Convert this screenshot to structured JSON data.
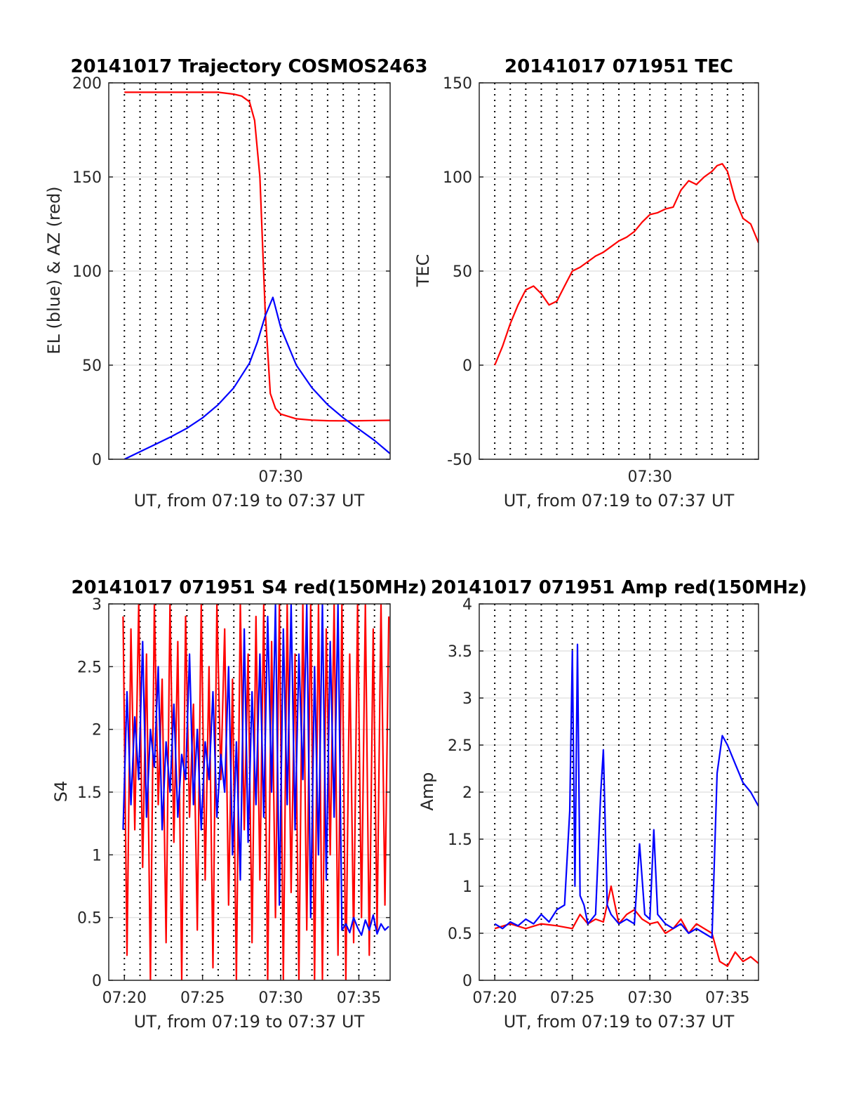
{
  "figure": {
    "background": "#ffffff",
    "colors": {
      "red": "#ff0000",
      "blue": "#0000ff",
      "axis": "#262626"
    }
  },
  "chart_data": [
    {
      "type": "line",
      "title": "20141017 Trajectory COSMOS2463",
      "xlabel": "UT, from 07:19 to 07:37 UT",
      "ylabel": "EL (blue) & AZ (red)",
      "xlim": [
        "07:19",
        "07:37"
      ],
      "ylim": [
        0,
        200
      ],
      "yticks": [
        0,
        50,
        100,
        150,
        200
      ],
      "xticks": [
        {
          "t": "07:30",
          "label": "07:30"
        }
      ],
      "grid": {
        "vertical_dotted_every_minute": true,
        "horizontal_at_yticks": true
      },
      "series": [
        {
          "color": "#ff0000",
          "x": [
            "07:20",
            "07:21",
            "07:22",
            "07:23",
            "07:24",
            "07:25",
            "07:26",
            "07:27",
            "07:27:30",
            "07:28",
            "07:28:20",
            "07:28:40",
            "07:29",
            "07:29:20",
            "07:29:40",
            "07:30",
            "07:31",
            "07:32",
            "07:33",
            "07:34",
            "07:35",
            "07:36",
            "07:37"
          ],
          "values": [
            195,
            195,
            195,
            195,
            195,
            195,
            195,
            194,
            193,
            190,
            180,
            150,
            80,
            35,
            27,
            24,
            21.5,
            20.8,
            20.5,
            20.4,
            20.5,
            20.6,
            20.7
          ]
        },
        {
          "color": "#0000ff",
          "x": [
            "07:20",
            "07:21",
            "07:22",
            "07:23",
            "07:24",
            "07:25",
            "07:26",
            "07:27",
            "07:28",
            "07:28:30",
            "07:29",
            "07:29:30",
            "07:30",
            "07:31",
            "07:32",
            "07:33",
            "07:34",
            "07:35",
            "07:36",
            "07:37"
          ],
          "values": [
            0,
            4,
            8,
            12,
            16.5,
            22,
            29,
            38,
            51,
            62,
            76,
            86,
            70,
            50,
            38,
            29,
            22,
            16,
            10,
            3
          ]
        }
      ]
    },
    {
      "type": "line",
      "title": "20141017 071951 TEC",
      "xlabel": "UT, from 07:19 to 07:37 UT",
      "ylabel": "TEC",
      "xlim": [
        "07:19",
        "07:37"
      ],
      "ylim": [
        -50,
        150
      ],
      "yticks": [
        -50,
        0,
        50,
        100,
        150
      ],
      "xticks": [
        {
          "t": "07:30",
          "label": "07:30"
        }
      ],
      "grid": {
        "vertical_dotted_every_minute": true,
        "horizontal_at_yticks": true
      },
      "series": [
        {
          "color": "#ff0000",
          "x": [
            "07:20",
            "07:20:30",
            "07:21",
            "07:21:30",
            "07:22",
            "07:22:30",
            "07:23",
            "07:23:30",
            "07:24",
            "07:24:30",
            "07:25",
            "07:25:30",
            "07:26",
            "07:26:30",
            "07:27",
            "07:27:30",
            "07:28",
            "07:28:30",
            "07:29",
            "07:29:30",
            "07:30",
            "07:30:30",
            "07:31",
            "07:31:30",
            "07:32",
            "07:32:30",
            "07:33",
            "07:33:30",
            "07:34",
            "07:34:20",
            "07:34:40",
            "07:35",
            "07:35:30",
            "07:36",
            "07:36:30",
            "07:37"
          ],
          "values": [
            0,
            10,
            22,
            32,
            40,
            42,
            38,
            32,
            34,
            42,
            50,
            52,
            55,
            58,
            60,
            63,
            66,
            68,
            71,
            76,
            80,
            81,
            83,
            84,
            93,
            98,
            96,
            100,
            103,
            106,
            107,
            103,
            88,
            78,
            75,
            65
          ]
        }
      ]
    },
    {
      "type": "line",
      "title": "20141017 071951 S4 red(150MHz)",
      "xlabel": "UT, from 07:19 to 07:37 UT",
      "ylabel": "S4",
      "xlim": [
        "07:19",
        "07:37"
      ],
      "ylim": [
        0,
        3
      ],
      "yticks": [
        0,
        0.5,
        1,
        1.5,
        2,
        2.5,
        3
      ],
      "xticks": [
        {
          "t": "07:20",
          "label": "07:20"
        },
        {
          "t": "07:25",
          "label": "07:25"
        },
        {
          "t": "07:30",
          "label": "07:30"
        },
        {
          "t": "07:35",
          "label": "07:35"
        }
      ],
      "grid": {
        "vertical_dotted_every_minute": true,
        "horizontal_at_yticks": true
      },
      "series": [
        {
          "color": "#ff0000",
          "x": [
            "07:19:55",
            "07:20:10",
            "07:20:25",
            "07:20:40",
            "07:20:55",
            "07:21:10",
            "07:21:25",
            "07:21:40",
            "07:21:55",
            "07:22:10",
            "07:22:25",
            "07:22:40",
            "07:22:55",
            "07:23:10",
            "07:23:25",
            "07:23:40",
            "07:23:55",
            "07:24:10",
            "07:24:25",
            "07:24:40",
            "07:24:55",
            "07:25:10",
            "07:25:25",
            "07:25:40",
            "07:25:55",
            "07:26:10",
            "07:26:25",
            "07:26:40",
            "07:26:55",
            "07:27:10",
            "07:27:25",
            "07:27:40",
            "07:27:55",
            "07:28:10",
            "07:28:25",
            "07:28:40",
            "07:28:55",
            "07:29:10",
            "07:29:25",
            "07:29:40",
            "07:29:55",
            "07:30:10",
            "07:30:25",
            "07:30:40",
            "07:30:55",
            "07:31:10",
            "07:31:25",
            "07:31:40",
            "07:31:55",
            "07:32:10",
            "07:32:25",
            "07:32:40",
            "07:32:55",
            "07:33:10",
            "07:33:25",
            "07:33:40",
            "07:33:55",
            "07:34:10",
            "07:34:25",
            "07:34:40",
            "07:34:55",
            "07:35:10",
            "07:35:25",
            "07:35:40",
            "07:35:55",
            "07:36:10",
            "07:36:25",
            "07:36:40",
            "07:36:55"
          ],
          "values": [
            2.9,
            0.2,
            2.8,
            1.2,
            3,
            0.9,
            2.6,
            0,
            3,
            1.4,
            2.4,
            0.3,
            3,
            1.1,
            2.7,
            0,
            2.9,
            1.3,
            2.2,
            0.4,
            3,
            0.8,
            2.5,
            0.1,
            3,
            1.6,
            2.8,
            0.6,
            2.4,
            0,
            3,
            1.2,
            2.6,
            0.3,
            2.9,
            0.8,
            3,
            0,
            2.7,
            0.5,
            3,
            0,
            3,
            0.7,
            2.6,
            0,
            3,
            0.4,
            3,
            0,
            3,
            0,
            2.8,
            1,
            3,
            0.2,
            3,
            0,
            2.6,
            0.3,
            3,
            0.5,
            3,
            0.2,
            2.8,
            0.4,
            3,
            0.6,
            2.9
          ]
        },
        {
          "color": "#0000ff",
          "x": [
            "07:19:55",
            "07:20:10",
            "07:20:25",
            "07:20:40",
            "07:20:55",
            "07:21:10",
            "07:21:25",
            "07:21:40",
            "07:21:55",
            "07:22:10",
            "07:22:25",
            "07:22:40",
            "07:22:55",
            "07:23:10",
            "07:23:25",
            "07:23:40",
            "07:23:55",
            "07:24:10",
            "07:24:25",
            "07:24:40",
            "07:24:55",
            "07:25:10",
            "07:25:25",
            "07:25:40",
            "07:25:55",
            "07:26:10",
            "07:26:25",
            "07:26:40",
            "07:26:55",
            "07:27:10",
            "07:27:25",
            "07:27:40",
            "07:27:55",
            "07:28:10",
            "07:28:25",
            "07:28:40",
            "07:28:55",
            "07:29:10",
            "07:29:25",
            "07:29:40",
            "07:29:55",
            "07:30:10",
            "07:30:25",
            "07:30:40",
            "07:30:55",
            "07:31:10",
            "07:31:25",
            "07:31:40",
            "07:31:55",
            "07:32:10",
            "07:32:25",
            "07:32:40",
            "07:32:55",
            "07:33:10",
            "07:33:25",
            "07:33:40",
            "07:33:55",
            "07:34:10",
            "07:34:25",
            "07:34:40",
            "07:34:55",
            "07:35:10",
            "07:35:25",
            "07:35:40",
            "07:35:55",
            "07:36:10",
            "07:36:25",
            "07:36:40",
            "07:36:55"
          ],
          "values": [
            1.2,
            2.3,
            1.4,
            2.1,
            1.6,
            2.7,
            1.3,
            2.0,
            1.7,
            2.5,
            1.2,
            1.9,
            1.5,
            2.2,
            1.3,
            1.8,
            1.6,
            2.6,
            1.4,
            2.0,
            1.2,
            1.9,
            1.6,
            2.3,
            1.3,
            1.8,
            1.5,
            2.5,
            1.0,
            1.9,
            0.8,
            2.8,
            1.1,
            2.3,
            1.4,
            2.6,
            1.3,
            2.9,
            1.5,
            3.0,
            0.6,
            2.8,
            1.4,
            3.0,
            1.2,
            2.6,
            1.6,
            3.0,
            0.5,
            2.5,
            1.0,
            3.0,
            0.8,
            2.7,
            1.3,
            3.0,
            0.4,
            0.45,
            0.38,
            0.5,
            0.42,
            0.36,
            0.48,
            0.4,
            0.52,
            0.37,
            0.45,
            0.4,
            0.43
          ]
        }
      ]
    },
    {
      "type": "line",
      "title": "20141017 071951 Amp red(150MHz)",
      "xlabel": "UT, from 07:19 to 07:37 UT",
      "ylabel": "Amp",
      "xlim": [
        "07:19",
        "07:37"
      ],
      "ylim": [
        0,
        4
      ],
      "yticks": [
        0,
        0.5,
        1,
        1.5,
        2,
        2.5,
        3,
        3.5,
        4
      ],
      "xticks": [
        {
          "t": "07:20",
          "label": "07:20"
        },
        {
          "t": "07:25",
          "label": "07:25"
        },
        {
          "t": "07:30",
          "label": "07:30"
        },
        {
          "t": "07:35",
          "label": "07:35"
        }
      ],
      "grid": {
        "vertical_dotted_every_minute": true,
        "horizontal_at_yticks": true
      },
      "series": [
        {
          "color": "#ff0000",
          "x": [
            "07:20",
            "07:21",
            "07:22",
            "07:23",
            "07:24",
            "07:25",
            "07:25:30",
            "07:26",
            "07:26:30",
            "07:27",
            "07:27:30",
            "07:28",
            "07:28:30",
            "07:29",
            "07:29:30",
            "07:30",
            "07:30:30",
            "07:31",
            "07:31:30",
            "07:32",
            "07:32:30",
            "07:33",
            "07:33:30",
            "07:34",
            "07:34:30",
            "07:35",
            "07:35:30",
            "07:36",
            "07:36:30",
            "07:37"
          ],
          "values": [
            0.55,
            0.6,
            0.55,
            0.6,
            0.58,
            0.55,
            0.7,
            0.6,
            0.65,
            0.62,
            1.0,
            0.6,
            0.7,
            0.75,
            0.65,
            0.6,
            0.62,
            0.5,
            0.55,
            0.65,
            0.5,
            0.6,
            0.55,
            0.5,
            0.2,
            0.15,
            0.3,
            0.2,
            0.25,
            0.18
          ]
        },
        {
          "color": "#0000ff",
          "x": [
            "07:20",
            "07:20:30",
            "07:21",
            "07:21:30",
            "07:22",
            "07:22:30",
            "07:23",
            "07:23:30",
            "07:24",
            "07:24:30",
            "07:24:50",
            "07:25",
            "07:25:10",
            "07:25:20",
            "07:25:30",
            "07:25:45",
            "07:26",
            "07:26:30",
            "07:26:50",
            "07:27",
            "07:27:15",
            "07:27:30",
            "07:28",
            "07:28:30",
            "07:29",
            "07:29:20",
            "07:29:40",
            "07:30",
            "07:30:15",
            "07:30:30",
            "07:31",
            "07:31:30",
            "07:32",
            "07:32:30",
            "07:33",
            "07:33:30",
            "07:34",
            "07:34:20",
            "07:34:40",
            "07:35",
            "07:35:30",
            "07:36",
            "07:36:30",
            "07:37"
          ],
          "values": [
            0.6,
            0.55,
            0.62,
            0.58,
            0.65,
            0.6,
            0.7,
            0.62,
            0.75,
            0.8,
            1.8,
            3.5,
            1.0,
            3.57,
            0.9,
            0.8,
            0.6,
            0.7,
            2.0,
            2.45,
            0.8,
            0.7,
            0.6,
            0.65,
            0.6,
            1.45,
            0.7,
            0.65,
            1.6,
            0.7,
            0.6,
            0.55,
            0.6,
            0.5,
            0.55,
            0.5,
            0.45,
            2.2,
            2.6,
            2.5,
            2.3,
            2.1,
            2.0,
            1.85
          ]
        }
      ]
    }
  ]
}
